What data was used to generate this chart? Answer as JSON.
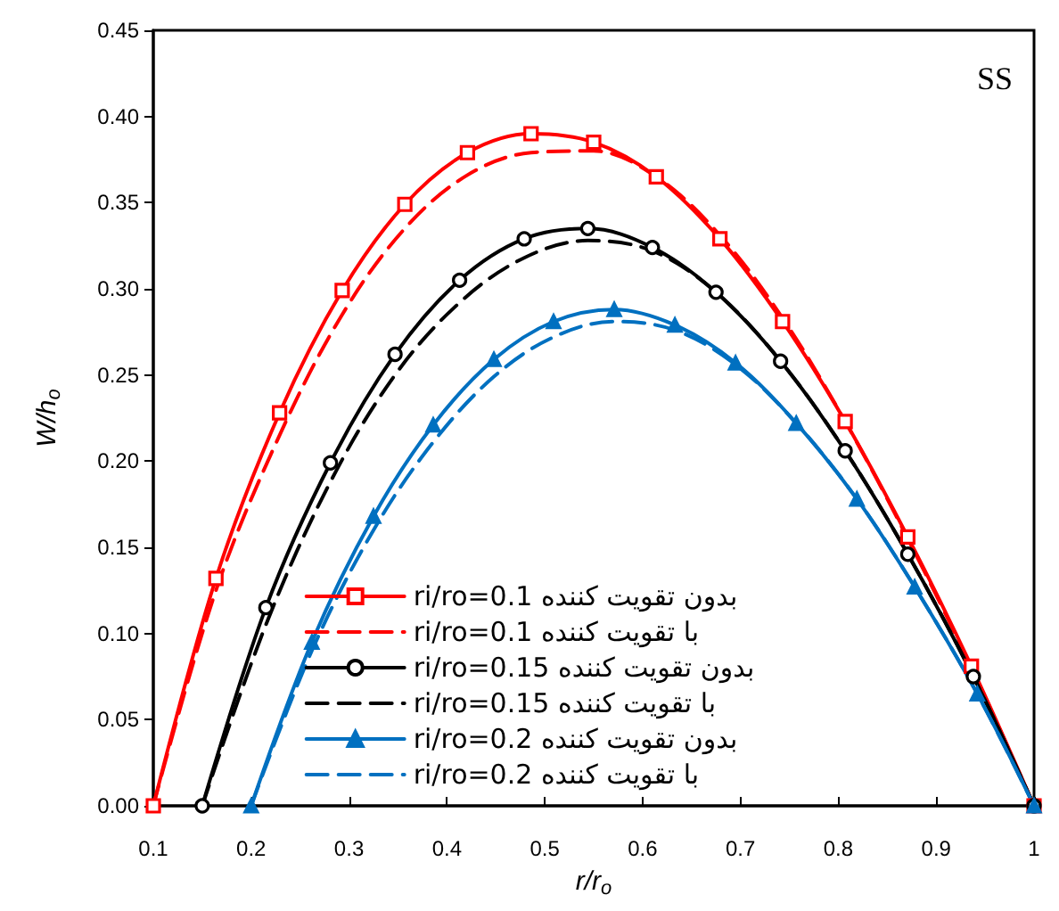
{
  "chart_data": {
    "type": "line",
    "xlabel": "r/r$_{o}$",
    "ylabel": "W/h$_{o}$",
    "annotations": [
      "SS"
    ],
    "xlim": [
      0.1,
      1
    ],
    "xticks": [
      0.1,
      0.2,
      0.3,
      0.4,
      0.5,
      0.6,
      0.7,
      0.8,
      0.9,
      1
    ],
    "ylim": [
      0,
      0.45
    ],
    "yticks": [
      {
        "value": 0,
        "label": "0.00"
      },
      {
        "value": 0.05,
        "label": "0.05"
      },
      {
        "value": 0.1,
        "label": "0.10"
      },
      {
        "value": 0.15,
        "label": "0.15"
      },
      {
        "value": 0.2,
        "label": "0.20"
      },
      {
        "value": 0.25,
        "label": "0.25"
      },
      {
        "value": 0.3,
        "label": "0.30"
      },
      {
        "value": 0.35,
        "label": "0.35"
      },
      {
        "value": 0.4,
        "label": "0.40"
      },
      {
        "value": 0.45,
        "label": "0.45"
      }
    ],
    "grid": false,
    "legend": "bottom",
    "series": [
      {
        "name": "ri/ro=0.1 بدون تقویت کننده",
        "color": "#ff0000",
        "marker": "square",
        "line_style": "solid",
        "x": [
          0.1,
          0.164,
          0.229,
          0.293,
          0.357,
          0.421,
          0.486,
          0.55,
          0.614,
          0.679,
          0.743,
          0.807,
          0.871,
          0.936,
          1.0
        ],
        "values": [
          0,
          0.132,
          0.228,
          0.299,
          0.349,
          0.379,
          0.39,
          0.385,
          0.365,
          0.329,
          0.281,
          0.223,
          0.156,
          0.081,
          0
        ]
      },
      {
        "name": "ri/ro=0.1 با تقویت کننده",
        "color": "#ff0000",
        "marker": "none",
        "line_style": "dashed",
        "x": [
          0.1,
          0.164,
          0.229,
          0.293,
          0.357,
          0.421,
          0.486,
          0.55,
          0.614,
          0.679,
          0.743,
          0.807,
          0.871,
          0.936,
          1.0
        ],
        "values": [
          0,
          0.125,
          0.215,
          0.285,
          0.335,
          0.366,
          0.379,
          0.38,
          0.365,
          0.331,
          0.283,
          0.223,
          0.155,
          0.08,
          0
        ]
      },
      {
        "name": "ri/ro=0.15 بدون تقویت کننده",
        "color": "#000000",
        "marker": "circle",
        "line_style": "solid",
        "x": [
          0.15,
          0.215,
          0.281,
          0.347,
          0.413,
          0.479,
          0.544,
          0.61,
          0.675,
          0.741,
          0.807,
          0.871,
          0.938,
          1.0
        ],
        "values": [
          0,
          0.115,
          0.199,
          0.262,
          0.305,
          0.329,
          0.335,
          0.324,
          0.298,
          0.258,
          0.206,
          0.146,
          0.075,
          0
        ]
      },
      {
        "name": "ri/ro=0.15 با تقویت کننده",
        "color": "#000000",
        "marker": "none",
        "line_style": "dashed",
        "x": [
          0.15,
          0.215,
          0.281,
          0.347,
          0.413,
          0.479,
          0.544,
          0.61,
          0.675,
          0.741,
          0.807,
          0.871,
          0.938,
          1.0
        ],
        "values": [
          0,
          0.105,
          0.188,
          0.25,
          0.292,
          0.318,
          0.328,
          0.322,
          0.298,
          0.258,
          0.206,
          0.146,
          0.075,
          0
        ]
      },
      {
        "name": "ri/ro=0.2 بدون تقویت کننده",
        "color": "#0070c0",
        "marker": "triangle",
        "line_style": "solid",
        "x": [
          0.2,
          0.262,
          0.325,
          0.386,
          0.448,
          0.509,
          0.571,
          0.633,
          0.695,
          0.757,
          0.819,
          0.878,
          0.942,
          1.0
        ],
        "values": [
          0,
          0.095,
          0.168,
          0.221,
          0.259,
          0.281,
          0.288,
          0.279,
          0.257,
          0.222,
          0.178,
          0.127,
          0.065,
          0
        ]
      },
      {
        "name": "ri/ro=0.2 با تقویت کننده",
        "color": "#0070c0",
        "marker": "none",
        "line_style": "dashed",
        "x": [
          0.2,
          0.262,
          0.325,
          0.386,
          0.448,
          0.509,
          0.571,
          0.633,
          0.695,
          0.757,
          0.819,
          0.878,
          0.942,
          1.0
        ],
        "values": [
          0,
          0.09,
          0.16,
          0.211,
          0.249,
          0.272,
          0.281,
          0.276,
          0.256,
          0.222,
          0.178,
          0.127,
          0.065,
          0
        ]
      }
    ]
  }
}
